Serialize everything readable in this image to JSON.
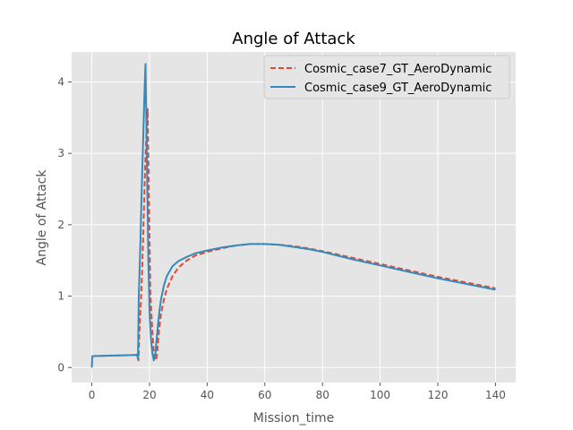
{
  "chart_data": {
    "type": "line",
    "title": "Angle of Attack",
    "xlabel": "Mission_time",
    "ylabel": "Angle of Attack",
    "xlim": [
      -7,
      147
    ],
    "ylim": [
      -0.21,
      4.42
    ],
    "xticks": [
      0,
      20,
      40,
      60,
      80,
      100,
      120,
      140
    ],
    "yticks": [
      0,
      1,
      2,
      3,
      4
    ],
    "grid": true,
    "legend_position": "top-right",
    "series": [
      {
        "name": "Cosmic_case7_GT_AeroDynamic",
        "color": "#e24a33",
        "style": "dashed",
        "x": [
          0,
          0.2,
          5,
          10,
          15,
          15.9,
          16.2,
          16.5,
          17,
          17.5,
          18,
          18.5,
          19,
          19.4,
          19.8,
          20.3,
          21,
          21.5,
          22,
          22.5,
          23,
          23.5,
          24,
          25,
          26,
          28,
          30,
          33,
          36,
          40,
          45,
          50,
          55,
          60,
          65,
          70,
          75,
          80,
          90,
          100,
          110,
          120,
          130,
          140
        ],
        "y": [
          0.16,
          0.16,
          0.165,
          0.17,
          0.175,
          0.18,
          0.1,
          0.5,
          0.9,
          1.4,
          2.1,
          2.8,
          3.35,
          3.62,
          2.4,
          1.05,
          0.5,
          0.2,
          0.1,
          0.14,
          0.38,
          0.58,
          0.75,
          0.95,
          1.1,
          1.28,
          1.4,
          1.5,
          1.57,
          1.62,
          1.67,
          1.71,
          1.73,
          1.73,
          1.72,
          1.7,
          1.67,
          1.63,
          1.54,
          1.45,
          1.36,
          1.27,
          1.19,
          1.11
        ]
      },
      {
        "name": "Cosmic_case9_GT_AeroDynamic",
        "color": "#348abd",
        "style": "solid",
        "x": [
          0,
          0.2,
          5,
          10,
          15,
          15.7,
          16,
          16.3,
          16.8,
          17.3,
          17.8,
          18.3,
          18.6,
          19.1,
          19.6,
          20,
          20.5,
          21,
          21.5,
          22,
          22.5,
          23,
          23.5,
          24,
          25,
          26,
          28,
          30,
          33,
          36,
          40,
          45,
          50,
          55,
          60,
          65,
          70,
          75,
          80,
          90,
          100,
          110,
          120,
          130,
          140
        ],
        "y": [
          0.0,
          0.16,
          0.165,
          0.17,
          0.175,
          0.18,
          0.12,
          1.0,
          1.7,
          2.5,
          3.2,
          3.9,
          4.25,
          2.9,
          1.5,
          0.8,
          0.4,
          0.2,
          0.1,
          0.18,
          0.4,
          0.62,
          0.8,
          0.95,
          1.15,
          1.28,
          1.42,
          1.49,
          1.55,
          1.6,
          1.64,
          1.68,
          1.71,
          1.73,
          1.73,
          1.72,
          1.69,
          1.66,
          1.62,
          1.52,
          1.43,
          1.34,
          1.25,
          1.17,
          1.09
        ]
      }
    ]
  },
  "colors": {
    "figure_background": "#ffffff",
    "plot_background": "#e5e5e5",
    "grid": "#ffffff",
    "tick_text": "#555555",
    "legend_background": "#e5e5e5",
    "legend_border": "#cccccc"
  }
}
